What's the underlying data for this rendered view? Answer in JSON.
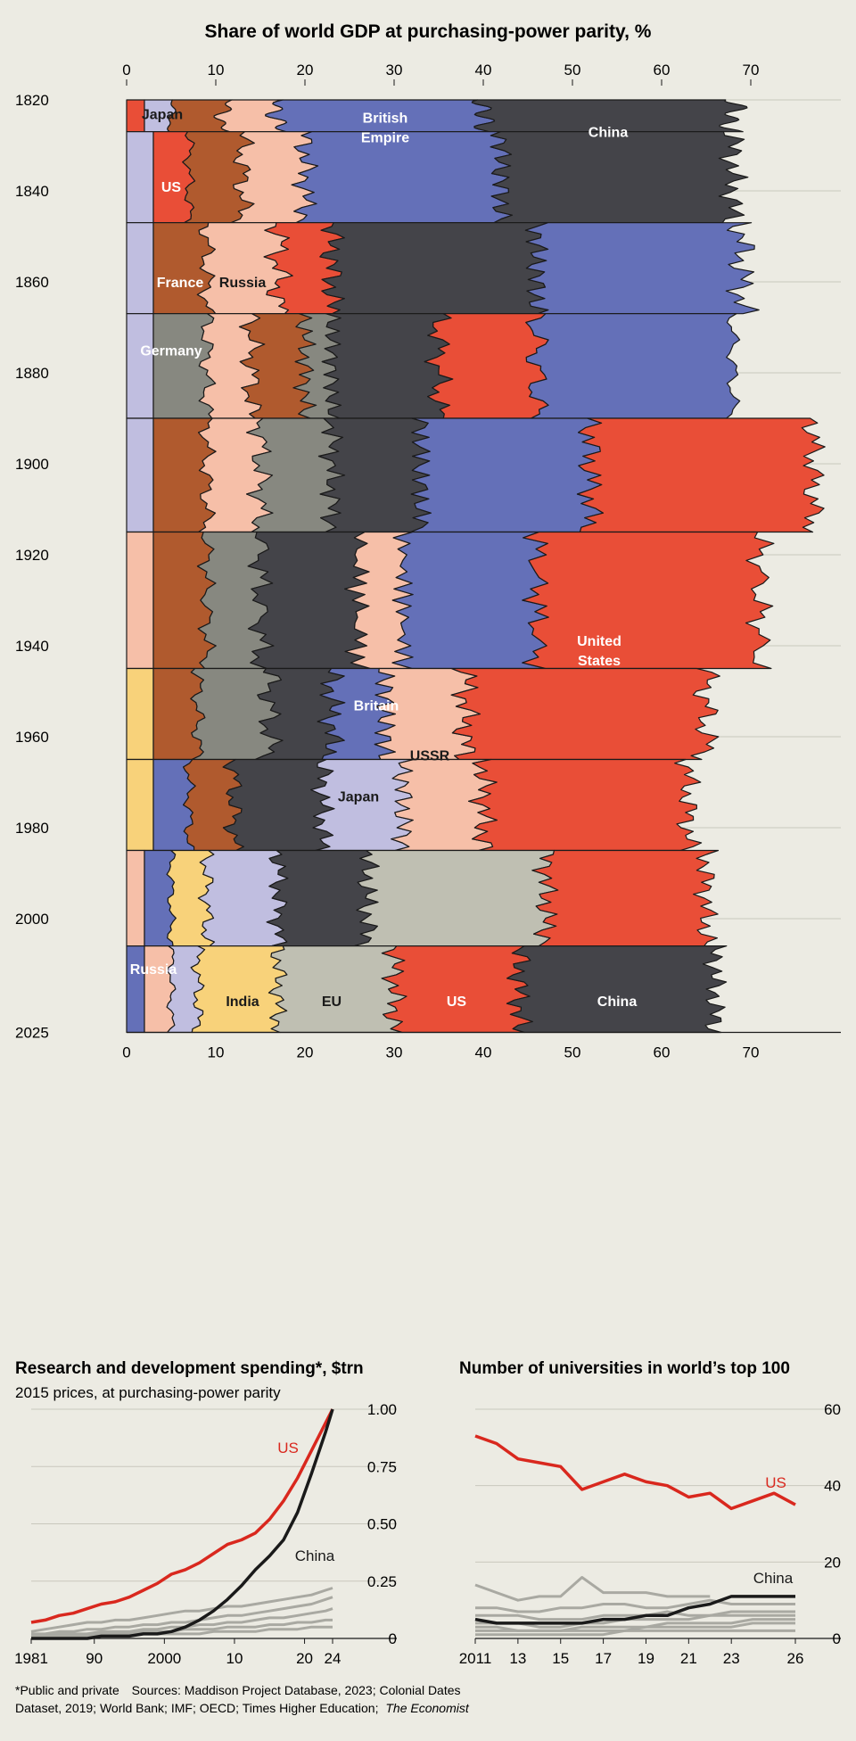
{
  "chart_data": [
    {
      "type": "area",
      "title": "Share of world GDP at purchasing-power parity, %",
      "x_ticks": [
        "0",
        "10",
        "20",
        "30",
        "40",
        "50",
        "60",
        "70"
      ],
      "year_ticks": [
        "1820",
        "1840",
        "1860",
        "1880",
        "1900",
        "1920",
        "1940",
        "1960",
        "1980",
        "2000",
        "2025"
      ],
      "xlim": [
        0,
        80
      ],
      "years": [
        1820,
        1840,
        1860,
        1880,
        1900,
        1920,
        1940,
        1960,
        1980,
        2000,
        2025
      ],
      "bands": [
        {
          "label": "Japan",
          "color": "#c0bee0",
          "years": [
            1820,
            1825
          ],
          "left": [
            2,
            2
          ],
          "right": [
            6,
            6
          ],
          "label_at": [
            1823,
            4
          ]
        },
        {
          "label": "British Empire",
          "color": "#6470b8",
          "years": [
            1820,
            1840
          ],
          "left": [
            17,
            17
          ],
          "right": [
            40,
            42
          ],
          "label_at": [
            1826,
            29
          ]
        },
        {
          "label": "China",
          "color": "#444449",
          "years": [
            1820,
            1840
          ],
          "left": [
            40,
            42
          ],
          "right": [
            68,
            66
          ],
          "label_at": [
            1827,
            54
          ]
        },
        {
          "label": "US",
          "color": "#e94e37",
          "years": [
            1825,
            1845
          ],
          "left": [
            3,
            3
          ],
          "right": [
            6,
            7
          ],
          "label_at": [
            1839,
            5
          ]
        },
        {
          "label": "France",
          "color": "#b05a2e",
          "years": [
            1852,
            1868
          ],
          "left": [
            3,
            3
          ],
          "right": [
            9,
            9
          ],
          "label_at": [
            1860,
            6
          ]
        },
        {
          "label": "Russia",
          "color": "#f6bfa8",
          "years": [
            1852,
            1868
          ],
          "left": [
            9,
            9
          ],
          "right": [
            16,
            16
          ],
          "label_at": [
            1860,
            13
          ]
        },
        {
          "label": "Germany",
          "color": "#878880",
          "years": [
            1868,
            1878
          ],
          "left": [
            3,
            3
          ],
          "right": [
            8,
            8
          ],
          "label_at": [
            1875,
            5
          ]
        },
        {
          "label": "United States",
          "color": "#e94e37",
          "years": [
            1900,
            2020
          ],
          "left": [
            45,
            40
          ],
          "right": [
            72,
            64
          ],
          "label_at": [
            1941,
            53
          ]
        },
        {
          "label": "Britain",
          "color": "#6470b8",
          "years": [
            1945,
            1958
          ],
          "left": [
            24,
            24
          ],
          "right": [
            32,
            32
          ],
          "label_at": [
            1953,
            28
          ]
        },
        {
          "label": "USSR",
          "color": "#f6bfa8",
          "years": [
            1948,
            1984
          ],
          "left": [
            30,
            30
          ],
          "right": [
            40,
            40
          ],
          "label_at": [
            1964,
            34
          ]
        },
        {
          "label": "Japan",
          "color": "#c0bee0",
          "years": [
            1965,
            1985
          ],
          "left": [
            22,
            22
          ],
          "right": [
            30,
            30
          ],
          "label_at": [
            1973,
            26
          ]
        },
        {
          "label": "Russia",
          "color": "#6470b8",
          "years": [
            2004,
            2025
          ],
          "left": [
            0,
            0
          ],
          "right": [
            2,
            2
          ],
          "label_at": [
            2011,
            3
          ]
        },
        {
          "label": "India",
          "color": "#f8d27a",
          "years": [
            2010,
            2025
          ],
          "left": [
            8,
            8
          ],
          "right": [
            17,
            17
          ],
          "label_at": [
            2018,
            13
          ]
        },
        {
          "label": "EU",
          "color": "#bfbfb2",
          "years": [
            2010,
            2025
          ],
          "left": [
            17,
            17
          ],
          "right": [
            30,
            30
          ],
          "label_at": [
            2018,
            23
          ]
        },
        {
          "label": "US",
          "color": "#e94e37",
          "years": [
            2010,
            2025
          ],
          "left": [
            30,
            30
          ],
          "right": [
            44,
            44
          ],
          "label_at": [
            2018,
            37
          ]
        },
        {
          "label": "China",
          "color": "#444449",
          "years": [
            2010,
            2025
          ],
          "left": [
            44,
            44
          ],
          "right": [
            66,
            66
          ],
          "label_at": [
            2018,
            55
          ]
        }
      ]
    },
    {
      "type": "line",
      "title": "Research and development spending*, $trn",
      "subtitle": "2015 prices, at purchasing-power parity",
      "x_ticks": [
        "1981",
        "90",
        "2000",
        "10",
        "20",
        "24"
      ],
      "x_tick_values": [
        1981,
        1990,
        2000,
        2010,
        2020,
        2024
      ],
      "y_ticks": [
        "0",
        "0.25",
        "0.50",
        "0.75",
        "1.00"
      ],
      "y_tick_values": [
        0,
        0.25,
        0.5,
        0.75,
        1.0
      ],
      "xlim": [
        1981,
        2024
      ],
      "ylim": [
        0,
        1.0
      ],
      "x": [
        1981,
        1983,
        1985,
        1987,
        1989,
        1991,
        1993,
        1995,
        1997,
        1999,
        2001,
        2003,
        2005,
        2007,
        2009,
        2011,
        2013,
        2015,
        2017,
        2019,
        2021,
        2023,
        2024
      ],
      "series": [
        {
          "name": "US",
          "color": "#d9281e",
          "values": [
            0.07,
            0.08,
            0.1,
            0.11,
            0.13,
            0.15,
            0.16,
            0.18,
            0.21,
            0.24,
            0.28,
            0.3,
            0.33,
            0.37,
            0.41,
            0.43,
            0.46,
            0.52,
            0.6,
            0.7,
            0.82,
            0.94,
            1.0
          ]
        },
        {
          "name": "China",
          "color": "#1a1a1a",
          "values": [
            0,
            0,
            0,
            0,
            0,
            0.01,
            0.01,
            0.01,
            0.02,
            0.02,
            0.03,
            0.05,
            0.08,
            0.12,
            0.17,
            0.23,
            0.3,
            0.36,
            0.43,
            0.55,
            0.72,
            0.9,
            1.0
          ]
        },
        {
          "color": "#a9a9a2",
          "values": [
            0.03,
            0.04,
            0.05,
            0.06,
            0.07,
            0.07,
            0.08,
            0.08,
            0.09,
            0.1,
            0.11,
            0.12,
            0.12,
            0.13,
            0.14,
            0.14,
            0.15,
            0.16,
            0.17,
            0.18,
            0.19,
            0.21,
            0.22
          ]
        },
        {
          "color": "#a9a9a2",
          "values": [
            0.02,
            0.02,
            0.03,
            0.03,
            0.04,
            0.04,
            0.05,
            0.05,
            0.06,
            0.06,
            0.07,
            0.07,
            0.08,
            0.09,
            0.1,
            0.1,
            0.11,
            0.12,
            0.13,
            0.14,
            0.15,
            0.17,
            0.18
          ]
        },
        {
          "color": "#a9a9a2",
          "values": [
            0.01,
            0.01,
            0.02,
            0.02,
            0.02,
            0.03,
            0.03,
            0.03,
            0.04,
            0.04,
            0.05,
            0.05,
            0.06,
            0.06,
            0.07,
            0.07,
            0.08,
            0.09,
            0.09,
            0.1,
            0.11,
            0.12,
            0.13
          ]
        },
        {
          "color": "#a9a9a2",
          "values": [
            0.01,
            0.01,
            0.01,
            0.01,
            0.02,
            0.02,
            0.02,
            0.02,
            0.03,
            0.03,
            0.03,
            0.04,
            0.04,
            0.04,
            0.05,
            0.05,
            0.05,
            0.06,
            0.06,
            0.07,
            0.07,
            0.08,
            0.08
          ]
        },
        {
          "color": "#a9a9a2",
          "values": [
            0,
            0,
            0.01,
            0.01,
            0.01,
            0.01,
            0.01,
            0.01,
            0.02,
            0.02,
            0.02,
            0.02,
            0.02,
            0.03,
            0.03,
            0.03,
            0.03,
            0.04,
            0.04,
            0.04,
            0.05,
            0.05,
            0.05
          ]
        }
      ]
    },
    {
      "type": "line",
      "title": "Number of universities in world’s top 100",
      "x_ticks": [
        "2011",
        "13",
        "15",
        "17",
        "19",
        "21",
        "23",
        "26"
      ],
      "x_tick_values": [
        2011,
        2013,
        2015,
        2017,
        2019,
        2021,
        2023,
        2026
      ],
      "y_ticks": [
        "0",
        "20",
        "40",
        "60"
      ],
      "y_tick_values": [
        0,
        20,
        40,
        60
      ],
      "xlim": [
        2011,
        2026
      ],
      "ylim": [
        0,
        60
      ],
      "x": [
        2011,
        2012,
        2013,
        2014,
        2015,
        2016,
        2017,
        2018,
        2019,
        2020,
        2021,
        2022,
        2023,
        2024,
        2025,
        2026
      ],
      "series": [
        {
          "name": "US",
          "color": "#d9281e",
          "values": [
            53,
            51,
            47,
            46,
            45,
            39,
            41,
            43,
            41,
            40,
            37,
            38,
            34,
            36,
            38,
            35
          ]
        },
        {
          "name": "China",
          "color": "#1a1a1a",
          "values": [
            5,
            4,
            4,
            4,
            4,
            4,
            5,
            5,
            6,
            6,
            8,
            9,
            11,
            11,
            11,
            11
          ]
        },
        {
          "color": "#a9a9a2",
          "values": [
            14,
            12,
            10,
            11,
            11,
            16,
            12,
            12,
            12,
            11,
            11,
            11,
            null,
            null,
            null,
            null
          ]
        },
        {
          "color": "#a9a9a2",
          "values": [
            8,
            8,
            7,
            7,
            8,
            8,
            9,
            9,
            8,
            8,
            9,
            10,
            9,
            9,
            9,
            9
          ]
        },
        {
          "color": "#a9a9a2",
          "values": [
            6,
            6,
            6,
            5,
            5,
            5,
            6,
            6,
            6,
            7,
            6,
            6,
            7,
            7,
            7,
            7
          ]
        },
        {
          "color": "#a9a9a2",
          "values": [
            4,
            4,
            4,
            3,
            3,
            4,
            4,
            5,
            5,
            5,
            5,
            6,
            6,
            6,
            6,
            6
          ]
        },
        {
          "color": "#a9a9a2",
          "values": [
            3,
            3,
            2,
            2,
            2,
            3,
            3,
            3,
            3,
            4,
            4,
            4,
            4,
            5,
            5,
            5
          ]
        },
        {
          "color": "#a9a9a2",
          "values": [
            2,
            2,
            2,
            2,
            2,
            2,
            2,
            2,
            3,
            3,
            3,
            3,
            3,
            4,
            4,
            4
          ]
        },
        {
          "color": "#a9a9a2",
          "values": [
            1,
            1,
            1,
            1,
            1,
            1,
            1,
            2,
            2,
            2,
            2,
            2,
            2,
            2,
            2,
            2
          ]
        }
      ]
    }
  ],
  "footnote_1": "*Public and private",
  "footnote_2": "Sources: Maddison Project Database, 2023; Colonial Dates",
  "footnote_3": "Dataset, 2019; World Bank; IMF; OECD; Times Higher Education;",
  "footnote_4": "The Economist"
}
